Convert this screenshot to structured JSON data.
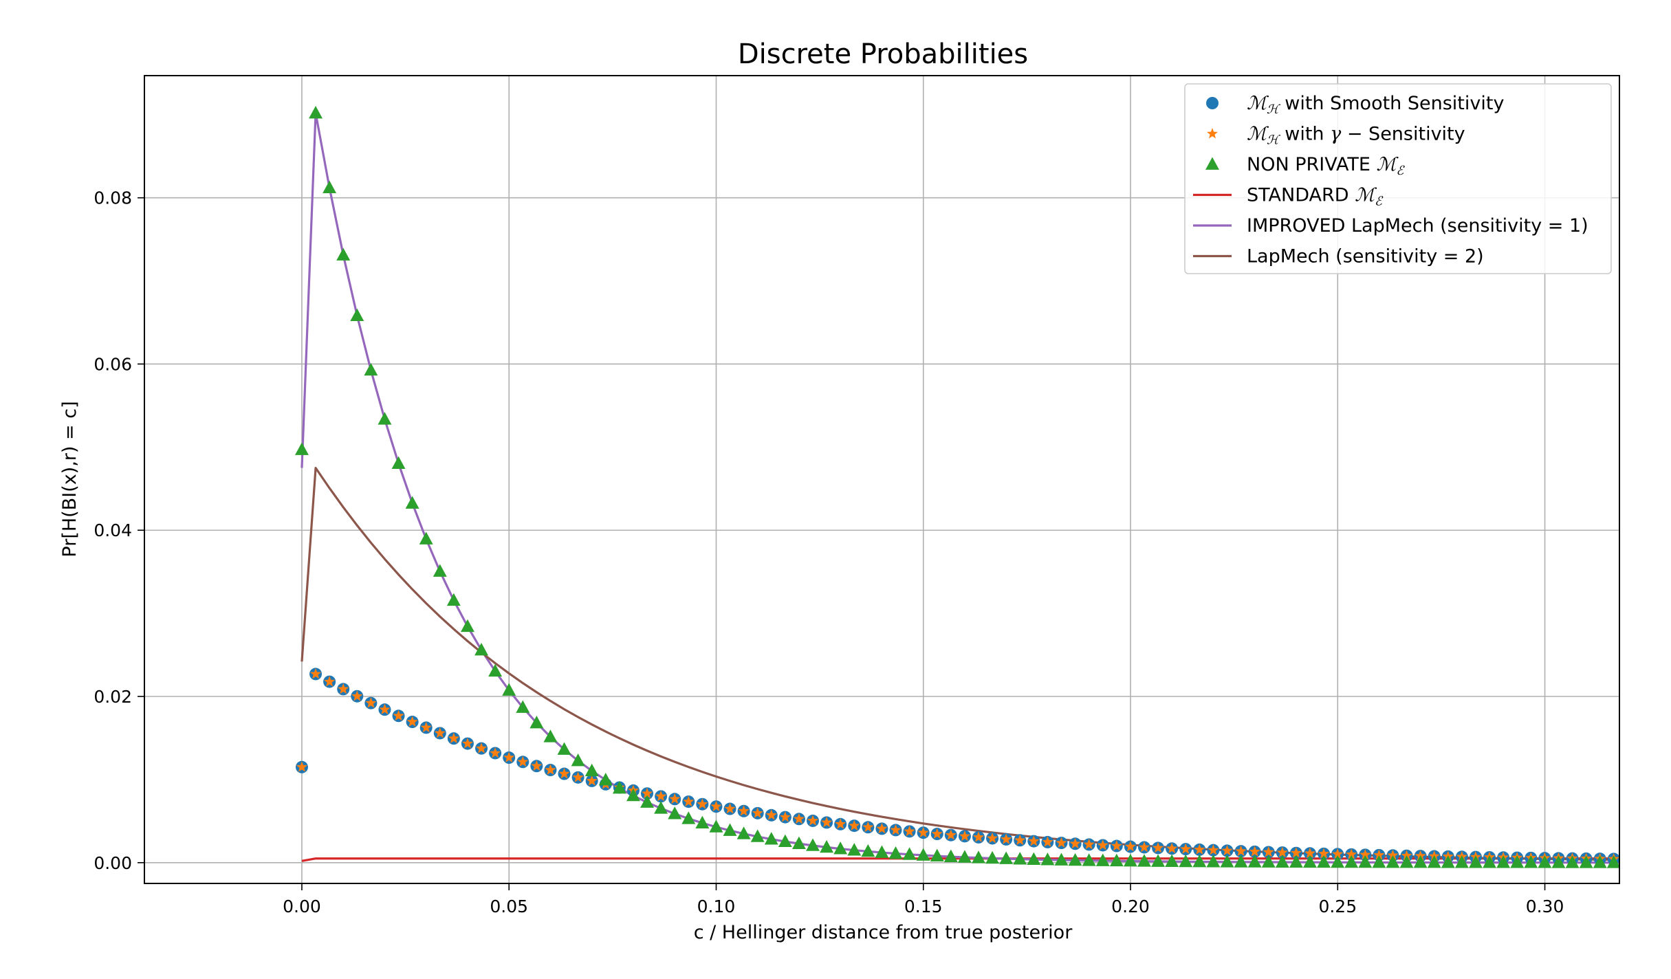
{
  "chart_data": {
    "type": "scatter",
    "title": "Discrete Probabilities",
    "xlabel": "c / Hellinger distance from true posterior",
    "ylabel": "Pr[H(BI(x),r) = c]",
    "xlim": [
      -0.038,
      0.318
    ],
    "ylim": [
      -0.0025,
      0.0947
    ],
    "x_ticks": [
      "0.00",
      "0.05",
      "0.10",
      "0.15",
      "0.20",
      "0.25",
      "0.30"
    ],
    "y_ticks": [
      "0.00",
      "0.02",
      "0.04",
      "0.06",
      "0.08"
    ],
    "x_tick_values": [
      0.0,
      0.05,
      0.1,
      0.15,
      0.2,
      0.25,
      0.3
    ],
    "y_tick_values": [
      0.0,
      0.02,
      0.04,
      0.06,
      0.08
    ],
    "grid": true,
    "legend_position": "top-right",
    "x_step": 0.003333,
    "series": [
      {
        "name": "ℳℋ with Smooth Sensitivity",
        "legend_math": "ℳ",
        "legend_sub": "ℋ",
        "legend_text": " with Smooth Sensitivity",
        "kind": "marker-circle",
        "color": "#1f77b4",
        "first": [
          0.0,
          0.0115
        ],
        "start": [
          0.00333,
          0.0227
        ],
        "decay": 12.55
      },
      {
        "name": "ℳℋ with γ − Sensitivity",
        "legend_math": "ℳ",
        "legend_sub": "ℋ",
        "legend_text": " with ",
        "legend_gamma": "γ",
        "legend_text2": " − Sensitivity",
        "kind": "marker-star",
        "color": "#ff7f0e",
        "first": [
          0.0,
          0.0115
        ],
        "start": [
          0.00333,
          0.0227
        ],
        "decay": 12.55
      },
      {
        "name": "NON PRIVATE ℳℰ",
        "legend_text": "NON PRIVATE ",
        "legend_math": "ℳ",
        "legend_sub": "ℰ",
        "kind": "marker-triangle",
        "color": "#2ca02c",
        "first": [
          0.0,
          0.0497
        ],
        "start": [
          0.00333,
          0.0902
        ],
        "decay": 31.5
      },
      {
        "name": "STANDARD ℳℰ",
        "legend_text": "STANDARD ",
        "legend_math": "ℳ",
        "legend_sub": "ℰ",
        "kind": "line",
        "color": "#d62728",
        "first": [
          0.0,
          0.0002
        ],
        "start": [
          0.00333,
          0.0005
        ],
        "decay": 0.0
      },
      {
        "name": "IMPROVED LapMech (sensitivity = 1)",
        "legend_text": "IMPROVED LapMech (sensitivity = 1)",
        "kind": "line",
        "color": "#9467bd",
        "first": [
          0.0,
          0.0475
        ],
        "start": [
          0.00333,
          0.0902
        ],
        "decay": 31.5
      },
      {
        "name": "LapMech (sensitivity = 2)",
        "legend_text": "LapMech (sensitivity = 2)",
        "kind": "line",
        "color": "#8c564b",
        "first": [
          0.0,
          0.0242
        ],
        "start": [
          0.00333,
          0.0475
        ],
        "decay": 15.75
      }
    ]
  }
}
